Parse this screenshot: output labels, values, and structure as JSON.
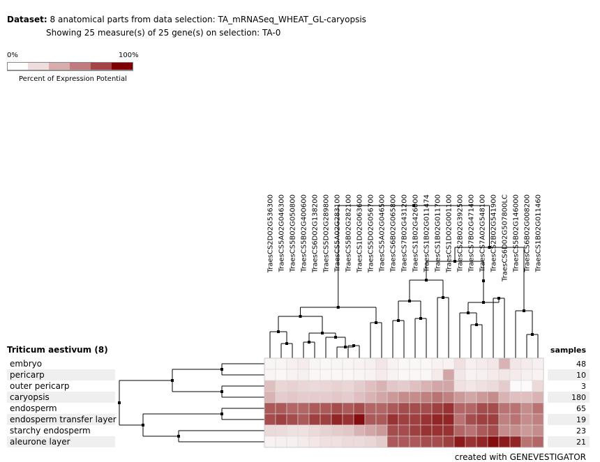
{
  "header": {
    "dataset_label": "Dataset:",
    "dataset_text": "8 anatomical parts from data selection: TA_mRNASeq_WHEAT_GL-caryopsis",
    "showing_text": "Showing 25 measure(s) of 25 gene(s) on selection: TA-0"
  },
  "legend": {
    "min_label": "0%",
    "max_label": "100%",
    "caption": "Percent of Expression Potential",
    "colors": [
      "#ffffff",
      "#efdcdc",
      "#d8acad",
      "#c07b7e",
      "#a54446",
      "#7f0000"
    ]
  },
  "organism_title": "Triticum aestivum (8)",
  "samples_title": "samples",
  "footer": "created with GENEVESTIGATOR",
  "chart_data": {
    "type": "heatmap",
    "value_unit": "percent of expression potential",
    "genes": [
      "TraesCS2D02G536300",
      "TraesCS5A02G046300",
      "TraesCS5B02G050800",
      "TraesCS5B02G400600",
      "TraesCS6D02G138200",
      "TraesCS5D02G289800",
      "TraesCS5A02G283100",
      "TraesCS5B02G282100",
      "TraesCS1D02G063600",
      "TraesCS5D02G056700",
      "TraesCS5A02G046500",
      "TraesCS6B02G065800",
      "TraesCS7B02G431200",
      "TraesCS1B02G426000",
      "TraesCS1B02G011474",
      "TraesCS1B02G011700",
      "TraesCS1D02G001100",
      "TraesCS2B02G392500",
      "TraesCS7B02G471400",
      "TraesCS7A02G548100",
      "TraesCS2B02G541900",
      "TraesCS6D02G507800LC",
      "TraesCS5B02G146000",
      "TraesCS6B02G008200",
      "TraesCS1B02G011460"
    ],
    "samples": [
      {
        "name": "embryo",
        "count": 48
      },
      {
        "name": "pericarp",
        "count": 10
      },
      {
        "name": "outer pericarp",
        "count": 3
      },
      {
        "name": "caryopsis",
        "count": 180
      },
      {
        "name": "endosperm",
        "count": 65
      },
      {
        "name": "endosperm transfer layer",
        "count": 19
      },
      {
        "name": "starchy endosperm",
        "count": 23
      },
      {
        "name": "aleurone layer",
        "count": 21
      }
    ],
    "values": [
      [
        4,
        4,
        6,
        8,
        4,
        3,
        4,
        4,
        5,
        6,
        10,
        5,
        3,
        3,
        3,
        5,
        5,
        12,
        6,
        8,
        10,
        30,
        10,
        8,
        6
      ],
      [
        4,
        3,
        5,
        6,
        3,
        3,
        3,
        3,
        4,
        5,
        8,
        5,
        3,
        3,
        3,
        8,
        35,
        10,
        5,
        6,
        8,
        10,
        8,
        6,
        5
      ],
      [
        25,
        16,
        18,
        16,
        15,
        16,
        18,
        16,
        20,
        25,
        30,
        22,
        20,
        25,
        30,
        35,
        35,
        12,
        10,
        12,
        14,
        20,
        2,
        2,
        15
      ],
      [
        30,
        20,
        22,
        20,
        20,
        20,
        22,
        20,
        25,
        30,
        35,
        40,
        45,
        45,
        50,
        55,
        50,
        40,
        35,
        40,
        45,
        30,
        25,
        25,
        30
      ],
      [
        65,
        65,
        60,
        60,
        65,
        65,
        70,
        65,
        70,
        60,
        60,
        65,
        70,
        70,
        70,
        75,
        80,
        60,
        60,
        70,
        70,
        55,
        55,
        45,
        55
      ],
      [
        70,
        75,
        70,
        65,
        75,
        75,
        85,
        80,
        95,
        65,
        65,
        80,
        75,
        75,
        80,
        85,
        85,
        55,
        70,
        75,
        75,
        50,
        55,
        45,
        50
      ],
      [
        15,
        14,
        12,
        12,
        15,
        18,
        20,
        22,
        30,
        35,
        40,
        70,
        70,
        75,
        80,
        80,
        80,
        60,
        55,
        65,
        70,
        45,
        45,
        40,
        45
      ],
      [
        5,
        6,
        6,
        8,
        10,
        12,
        12,
        14,
        14,
        16,
        20,
        65,
        65,
        65,
        70,
        70,
        75,
        90,
        80,
        85,
        95,
        90,
        85,
        55,
        60
      ]
    ]
  }
}
